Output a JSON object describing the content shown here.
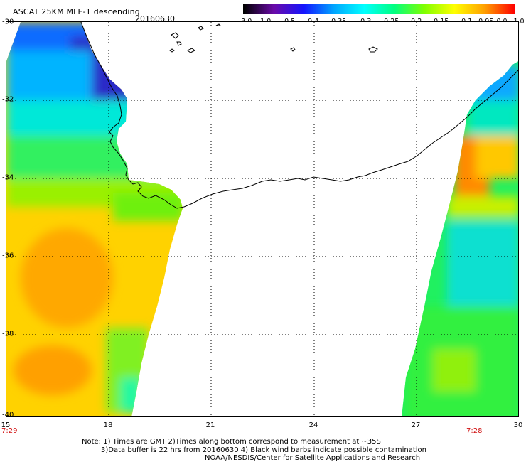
{
  "header": {
    "title": "ASCAT 25KM MLE-1 descending",
    "date": "20160630"
  },
  "colorbar": {
    "labels": [
      "-3.0",
      "-1.0",
      "-0.5",
      "-0.4",
      "-0.35",
      "-0.3",
      "-0.25",
      "-0.2",
      "-0.15",
      "-0.1",
      "-0.05",
      "0.0",
      "1.0"
    ],
    "colors": [
      "#000000",
      "#6a0aa8",
      "#1414ff",
      "#00a6ff",
      "#00ffff",
      "#00ff80",
      "#80ff00",
      "#ffff00",
      "#ffa000",
      "#ff0000"
    ]
  },
  "map": {
    "lat_labels": [
      "-30",
      "-32",
      "-34",
      "-36",
      "-38",
      "-40"
    ],
    "lon_labels": [
      "15",
      "18",
      "21",
      "24",
      "27",
      "30"
    ],
    "time_left": "7:29",
    "time_right": "7:28",
    "grid": "dotted",
    "coastline_color": "#000000"
  },
  "notes": {
    "line1": "Note: 1) Times are GMT 2)Times along bottom correspond to measurement at ~35S",
    "line2": "3)Data buffer is 22 hrs from 20160630 4) Black wind barbs indicate possible contamination",
    "line3": "NOAA/NESDIS/Center for Satellite Applications and Research"
  }
}
